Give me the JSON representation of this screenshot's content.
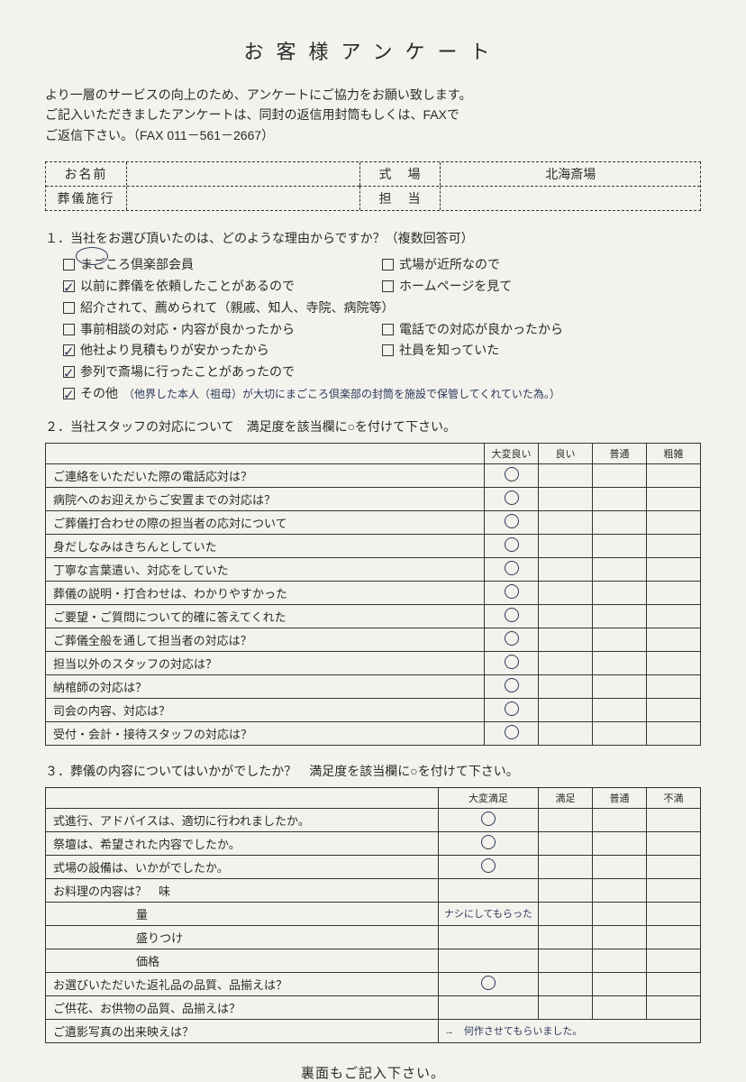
{
  "title": "お客様アンケート",
  "intro_line1": "より一層のサービスの向上のため、アンケートにご協力をお願い致します。",
  "intro_line2": "ご記入いただきましたアンケートは、同封の返信用封筒もしくは、FAXで",
  "intro_line3": "ご返信下さい。（FAX 011－561－2667）",
  "header": {
    "name_label": "お名前",
    "name_value": "",
    "company_label": "葬儀施行",
    "company_value": "",
    "venue_label": "式　場",
    "venue_value": "北海斎場",
    "staff_label": "担　当",
    "staff_value": ""
  },
  "q1": {
    "text": "１．当社をお選び頂いたのは、どのような理由からですか？（複数回答可）",
    "options": [
      {
        "label": "まごころ倶楽部会員",
        "checked": false,
        "full": false
      },
      {
        "label": "式場が近所なので",
        "checked": false,
        "full": false
      },
      {
        "label": "以前に葬儀を依頼したことがあるので",
        "checked": true,
        "full": false
      },
      {
        "label": "ホームページを見て",
        "checked": false,
        "full": false
      },
      {
        "label": "紹介されて、薦められて（親戚、知人、寺院、病院等）",
        "checked": false,
        "full": true
      },
      {
        "label": "事前相談の対応・内容が良かったから",
        "checked": false,
        "full": false
      },
      {
        "label": "電話での対応が良かったから",
        "checked": false,
        "full": false
      },
      {
        "label": "他社より見積もりが安かったから",
        "checked": true,
        "full": false
      },
      {
        "label": "社員を知っていた",
        "checked": false,
        "full": false
      },
      {
        "label": "参列で斎場に行ったことがあったので",
        "checked": true,
        "full": true
      },
      {
        "label": "その他",
        "checked": true,
        "full": true
      }
    ],
    "other_handwriting": "（他界した本人（祖母）が大切にまごころ倶楽部の封筒を施設で保管してくれていた為。）"
  },
  "q2": {
    "text": "２．当社スタッフの対応について　満足度を該当欄に○を付けて下さい。",
    "headers": [
      "大変良い",
      "良い",
      "普通",
      "粗雑"
    ],
    "rows": [
      {
        "label": "ご連絡をいただいた際の電話応対は？",
        "rating": 0
      },
      {
        "label": "病院へのお迎えからご安置までの対応は？",
        "rating": 0
      },
      {
        "label": "ご葬儀打合わせの際の担当者の応対について",
        "rating": 0
      },
      {
        "label": "身だしなみはきちんとしていた",
        "rating": 0
      },
      {
        "label": "丁寧な言葉遣い、対応をしていた",
        "rating": 0
      },
      {
        "label": "葬儀の説明・打合わせは、わかりやすかった",
        "rating": 0
      },
      {
        "label": "ご要望・ご質問について的確に答えてくれた",
        "rating": 0
      },
      {
        "label": "ご葬儀全般を通して担当者の対応は？",
        "rating": 0
      },
      {
        "label": "担当以外のスタッフの対応は？",
        "rating": 0
      },
      {
        "label": "納棺師の対応は？",
        "rating": 0
      },
      {
        "label": "司会の内容、対応は？",
        "rating": 0
      },
      {
        "label": "受付・会計・接待スタッフの対応は？",
        "rating": 0
      }
    ]
  },
  "q3": {
    "text": "３．葬儀の内容についてはいかがでしたか？　満足度を該当欄に○を付けて下さい。",
    "headers": [
      "大変満足",
      "満足",
      "普通",
      "不満"
    ],
    "rows": [
      {
        "label": "式進行、アドバイスは、適切に行われましたか。",
        "sub": false,
        "rating": 0
      },
      {
        "label": "祭壇は、希望された内容でしたか。",
        "sub": false,
        "rating": 0
      },
      {
        "label": "式場の設備は、いかがでしたか。",
        "sub": false,
        "rating": 0
      },
      {
        "label": "お料理の内容は？　味",
        "sub": false,
        "rating": -1
      },
      {
        "label": "量",
        "sub": true,
        "rating": -1
      },
      {
        "label": "盛りつけ",
        "sub": true,
        "rating": -1
      },
      {
        "label": "価格",
        "sub": true,
        "rating": -1
      },
      {
        "label": "お選びいただいた返礼品の品質、品揃えは？",
        "sub": false,
        "rating": 0
      },
      {
        "label": "ご供花、お供物の品質、品揃えは？",
        "sub": false,
        "rating": -1
      },
      {
        "label": "ご遺影写真の出来映えは？",
        "sub": false,
        "rating": -1
      }
    ],
    "food_note": "ナシにしてもらった",
    "photo_note": "→　何作させてもらいました。"
  },
  "footer": "裏面もご記入下さい。",
  "colors": {
    "bg": "#f4f2ed",
    "text": "#2a2a2a",
    "handwriting": "#2a3a5a"
  }
}
